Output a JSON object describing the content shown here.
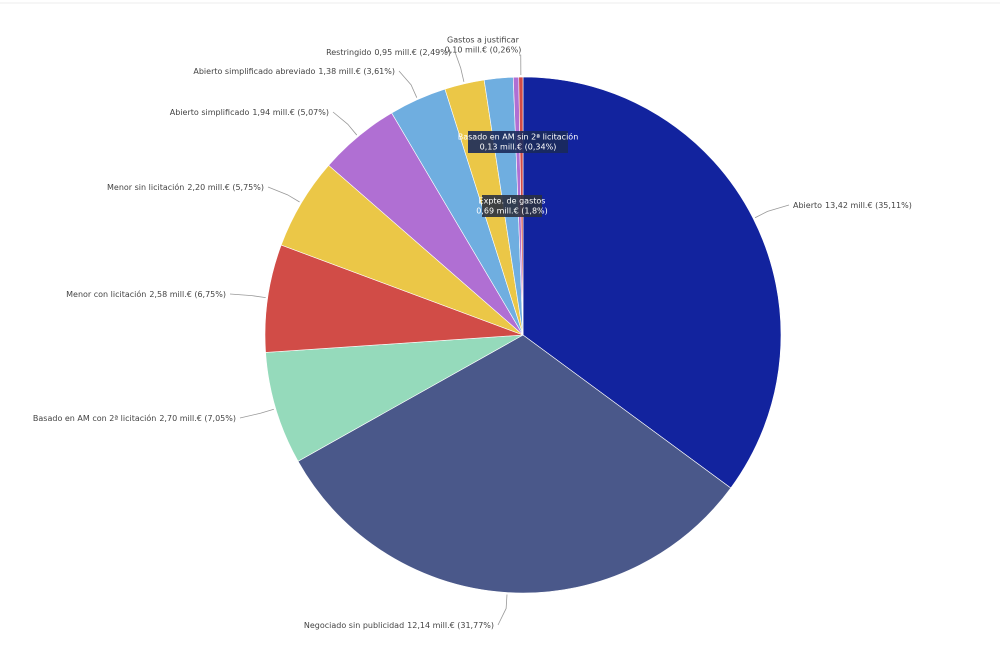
{
  "chart_data": {
    "type": "pie",
    "categories": [
      "Abierto",
      "Negociado sin publicidad",
      "Basado en AM con 2ª licitación",
      "Menor con licitación",
      "Menor sin licitación",
      "Abierto simplificado",
      "Abierto simplificado abreviado",
      "Restringido",
      "Expte. de gastos",
      "Basado en AM sin 2ª licitación",
      "Gastos a justificar"
    ],
    "values": [
      13.42,
      12.14,
      2.7,
      2.58,
      2.2,
      1.94,
      1.38,
      0.95,
      0.69,
      0.13,
      0.1
    ],
    "value_labels": [
      "13,42 mill.€ (35,11%)",
      "12,14 mill.€ (31,77%)",
      "2,70 mill.€ (7,05%)",
      "2,58 mill.€ (6,75%)",
      "2,20 mill.€ (5,75%)",
      "1,94 mill.€ (5,07%)",
      "1,38 mill.€ (3,61%)",
      "0,95 mill.€ (2,49%)",
      "0,69 mill.€ (1,8%)",
      "0,13 mill.€ (0,34%)",
      "0,10 mill.€ (0,26%)"
    ],
    "colors": [
      "#12239e",
      "#4a588a",
      "#95dabb",
      "#d14c47",
      "#ebc747",
      "#b06fd3",
      "#6faee0",
      "#ebc747",
      "#6faee0",
      "#b06fd3",
      "#d14c47"
    ]
  }
}
